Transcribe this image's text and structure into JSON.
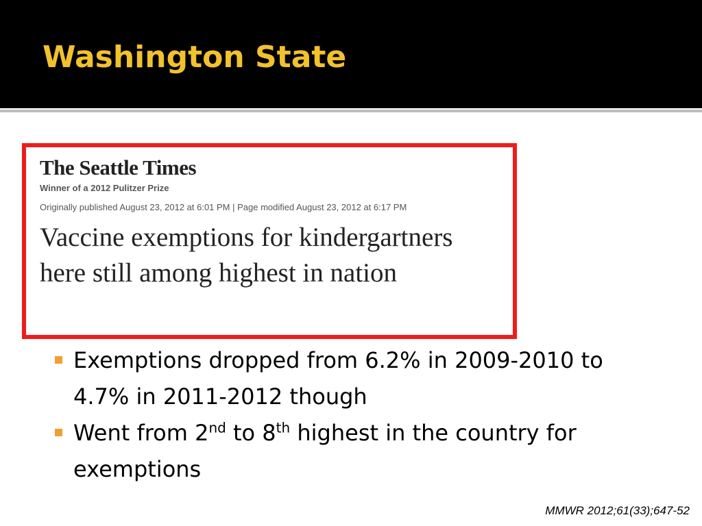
{
  "title": "Washington State",
  "clipping": {
    "masthead": "The Seattle Times",
    "prize": "Winner of a 2012 Pulitzer Prize",
    "published": "Originally published August 23, 2012 at 6:01 PM | Page modified August 23, 2012 at 6:17 PM",
    "headline": "Vaccine exemptions for kindergartners here still among highest in nation"
  },
  "bullets": [
    {
      "text": "Exemptions dropped from 6.2% in 2009-2010 to 4.7%  in 2011-2012 though"
    },
    {
      "parts": [
        "Went from 2",
        "nd",
        " to 8",
        "th",
        " highest in the country for exemptions"
      ]
    }
  ],
  "citation": "MMWR 2012;61(33);647-52"
}
